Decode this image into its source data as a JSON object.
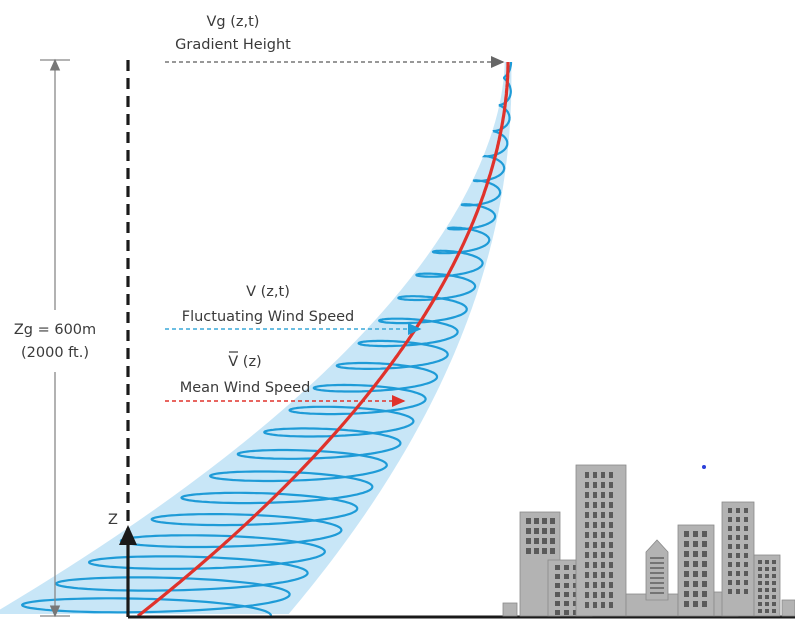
{
  "labels": {
    "gradient_var": "Vg (z,t)",
    "gradient_name": "Gradient Height",
    "fluct_var": "V (z,t)",
    "fluct_name": "Fluctuating Wind Speed",
    "mean_var": "V (z)",
    "mean_name": "Mean Wind Speed",
    "height_value": "Zg = 600m",
    "height_imperial": "(2000 ft.)",
    "z_axis": "Z"
  },
  "colors": {
    "mean_profile": "#e0322b",
    "fluctuation": "#1e9bd7",
    "envelope": "#c8e6f7",
    "buildings": "#b3b3b3",
    "building_edge": "#8a8a8a",
    "windows": "#5a5a5a",
    "arrow_gradient": "#777777",
    "arrow_fluct": "#3aa8d8",
    "arrow_mean": "#e0322b"
  }
}
